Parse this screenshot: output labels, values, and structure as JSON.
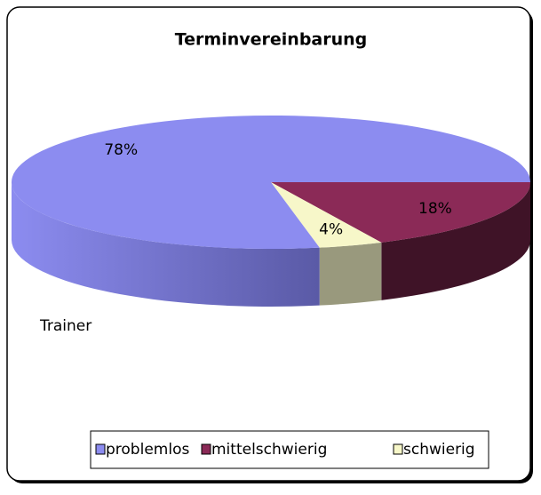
{
  "chart_data": {
    "type": "pie3d",
    "title": "Terminvereinbarung",
    "label": "Trainer",
    "categories": [
      "problemlos",
      "mittelschwierig",
      "schwierig"
    ],
    "values": [
      78,
      18,
      4
    ],
    "value_labels": [
      "78%",
      "18%",
      "4%"
    ],
    "colors": [
      "#8c8cf0",
      "#8b2a57",
      "#f7f7c9"
    ],
    "legend": "bottom"
  }
}
